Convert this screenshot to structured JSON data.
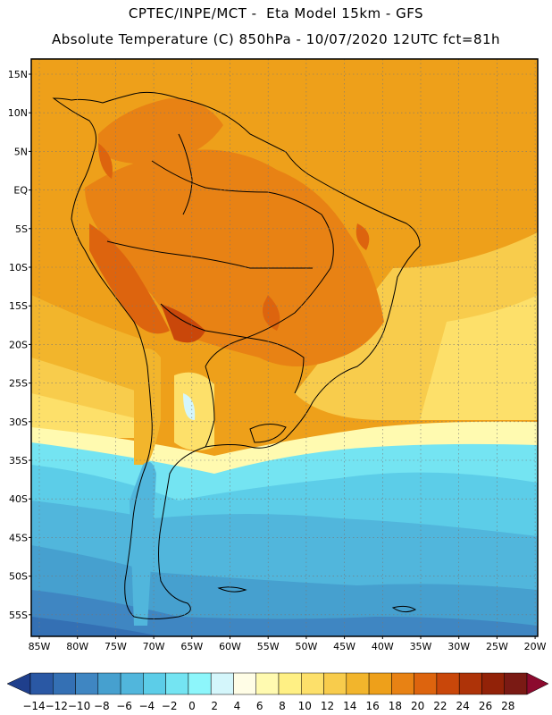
{
  "header": {
    "line1": "CPTEC/INPE/MCT -  Eta Model 15km - GFS",
    "line2": "Absolute Temperature (C) 850hPa - 10/07/2020 12UTC fct=81h"
  },
  "map": {
    "lat_labels": [
      "15N",
      "10N",
      "5N",
      "EQ",
      "5S",
      "10S",
      "15S",
      "20S",
      "25S",
      "30S",
      "35S",
      "40S",
      "45S",
      "50S",
      "55S"
    ],
    "lon_labels": [
      "85W",
      "80W",
      "75W",
      "70W",
      "65W",
      "60W",
      "55W",
      "50W",
      "45W",
      "40W",
      "35W",
      "30W",
      "25W",
      "20W"
    ]
  },
  "colorbar": {
    "labels": [
      "-14",
      "-12",
      "-10",
      "-8",
      "-6",
      "-4",
      "-2",
      "0",
      "2",
      "4",
      "6",
      "8",
      "10",
      "12",
      "14",
      "16",
      "18",
      "20",
      "22",
      "24",
      "26",
      "28"
    ],
    "colors": [
      "#1f3f8c",
      "#2a58a4",
      "#3470b4",
      "#3f86c2",
      "#46a0cf",
      "#51b6dc",
      "#5ccde8",
      "#74e4f2",
      "#8df6fb",
      "#d4f6fb",
      "#fffde6",
      "#fffab0",
      "#fff084",
      "#fde06a",
      "#f8cc4c",
      "#f2b52c",
      "#eea01a",
      "#e88214",
      "#dd640e",
      "#c9470a",
      "#ae3308",
      "#922208",
      "#7a1a14",
      "#8c0a2e"
    ]
  }
}
